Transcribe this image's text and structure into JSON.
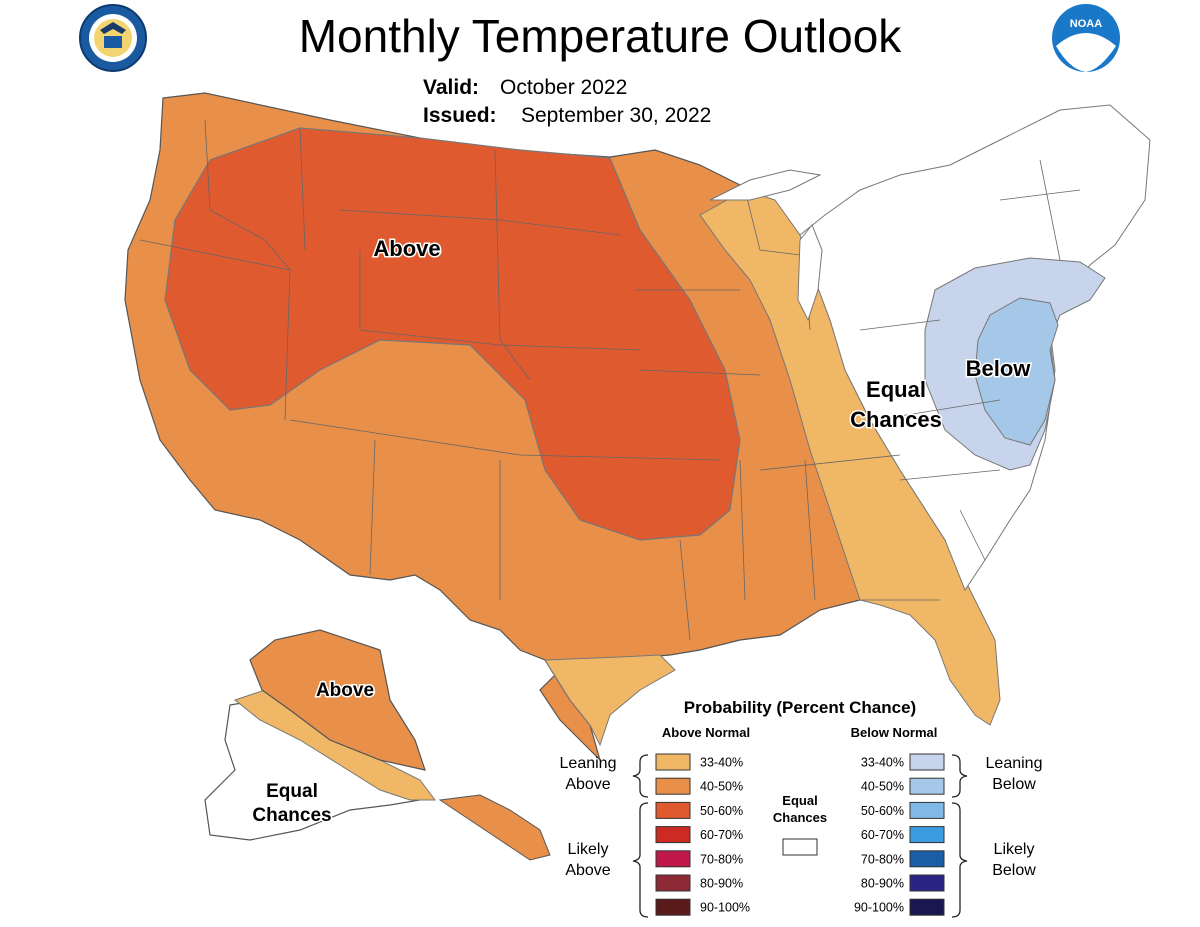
{
  "header": {
    "title": "Monthly Temperature Outlook",
    "valid_label": "Valid:",
    "valid_value": "October 2022",
    "issued_label": "Issued:",
    "issued_value": "September 30, 2022",
    "noaa_logo_text": "NOAA"
  },
  "map_labels": {
    "above_main": "Above",
    "equal_line1": "Equal",
    "equal_line2": "Chances",
    "below": "Below",
    "alaska_above": "Above",
    "alaska_equal_line1": "Equal",
    "alaska_equal_line2": "Chances"
  },
  "legend": {
    "title": "Probability (Percent Chance)",
    "above_header": "Above Normal",
    "below_header": "Below Normal",
    "equal_line1": "Equal",
    "equal_line2": "Chances",
    "leaning_above_1": "Leaning",
    "leaning_above_2": "Above",
    "likely_above_1": "Likely",
    "likely_above_2": "Above",
    "leaning_below_1": "Leaning",
    "leaning_below_2": "Below",
    "likely_below_1": "Likely",
    "likely_below_2": "Below",
    "above_items": [
      {
        "label": "33-40%",
        "color": "#f0b866"
      },
      {
        "label": "40-50%",
        "color": "#e8904a"
      },
      {
        "label": "50-60%",
        "color": "#e05a30"
      },
      {
        "label": "60-70%",
        "color": "#cc2a22"
      },
      {
        "label": "70-80%",
        "color": "#c0184a"
      },
      {
        "label": "80-90%",
        "color": "#8e2a35"
      },
      {
        "label": "90-100%",
        "color": "#5a1a1a"
      }
    ],
    "below_items": [
      {
        "label": "33-40%",
        "color": "#c8d4ec"
      },
      {
        "label": "40-50%",
        "color": "#a6c8e8"
      },
      {
        "label": "50-60%",
        "color": "#80b8e6"
      },
      {
        "label": "60-70%",
        "color": "#3c9ce0"
      },
      {
        "label": "70-80%",
        "color": "#1a5ea8"
      },
      {
        "label": "80-90%",
        "color": "#2a2486"
      },
      {
        "label": "90-100%",
        "color": "#1a1650"
      }
    ]
  },
  "colors": {
    "above_33_40": "#f0b866",
    "above_40_50": "#e8904a",
    "above_50_60": "#e05a30",
    "below_33_40": "#c8d4ec",
    "below_40_50": "#a6c8e8",
    "equal_chances": "#ffffff"
  }
}
